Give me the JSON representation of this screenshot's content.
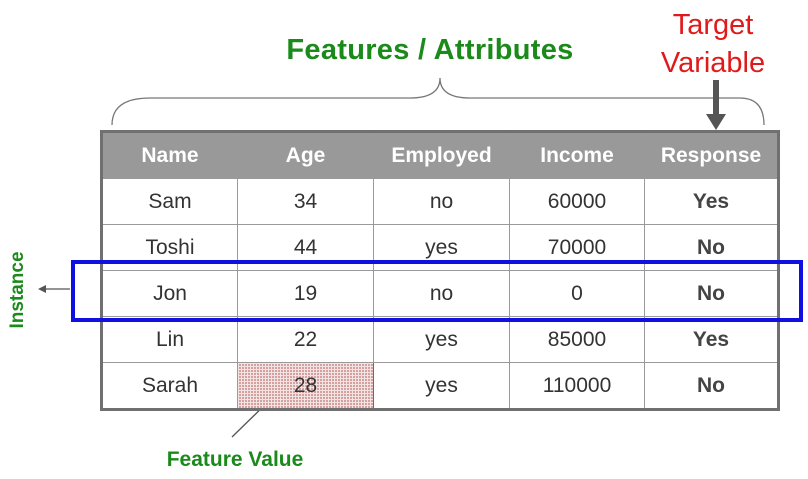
{
  "labels": {
    "features": "Features / Attributes",
    "target": [
      "Target",
      "Variable"
    ],
    "instance": "Instance",
    "feature_value": "Feature Value"
  },
  "table": {
    "headers": [
      "Name",
      "Age",
      "Employed",
      "Income",
      "Response"
    ],
    "rows": [
      [
        "Sam",
        "34",
        "no",
        "60000",
        "Yes"
      ],
      [
        "Toshi",
        "44",
        "yes",
        "70000",
        "No"
      ],
      [
        "Jon",
        "19",
        "no",
        "0",
        "No"
      ],
      [
        "Lin",
        "22",
        "yes",
        "85000",
        "Yes"
      ],
      [
        "Sarah",
        "28",
        "yes",
        "110000",
        "No"
      ]
    ]
  },
  "colors": {
    "label_green": "#1a8a1a",
    "target_red": "#e01a1a",
    "instance_blue": "#1010e0",
    "header_gray": "#999999"
  }
}
